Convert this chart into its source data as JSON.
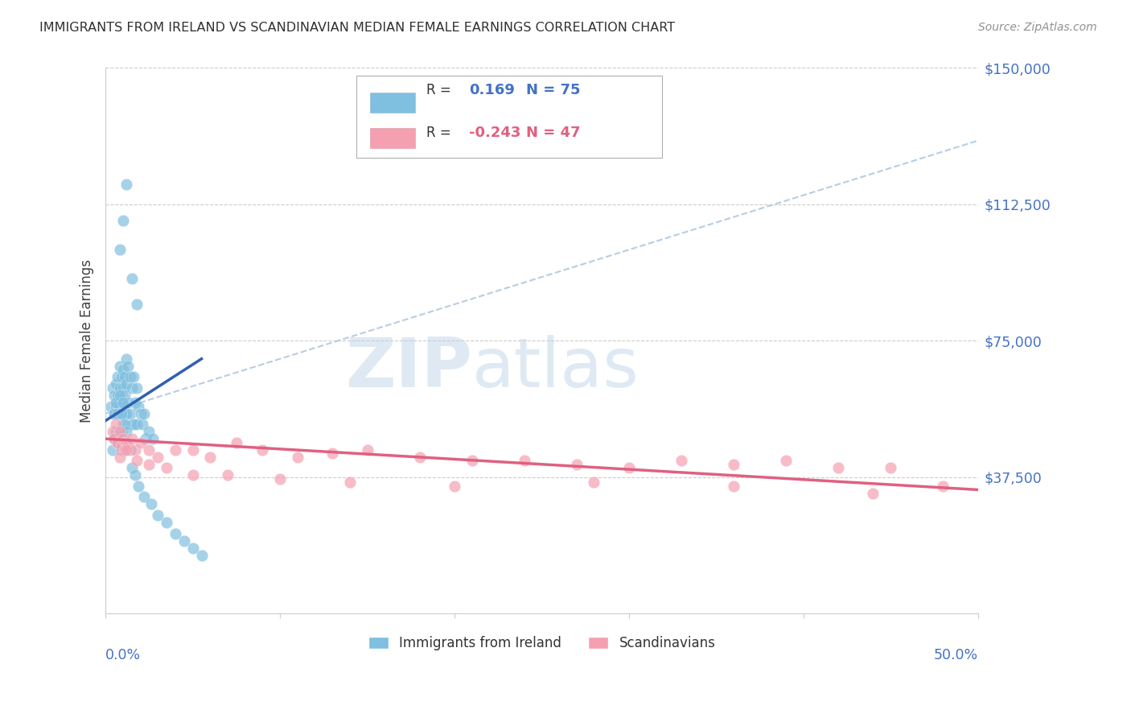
{
  "title": "IMMIGRANTS FROM IRELAND VS SCANDINAVIAN MEDIAN FEMALE EARNINGS CORRELATION CHART",
  "source": "Source: ZipAtlas.com",
  "ylabel": "Median Female Earnings",
  "xlim": [
    0.0,
    0.5
  ],
  "ylim": [
    0,
    150000
  ],
  "legend_ireland_R": "0.169",
  "legend_ireland_N": "75",
  "legend_scandinavian_R": "-0.243",
  "legend_scandinavian_N": "47",
  "legend_label_ireland": "Immigrants from Ireland",
  "legend_label_scandinavian": "Scandinavians",
  "color_ireland": "#7fbfdf",
  "color_scandinavian": "#f4a0b0",
  "color_ireland_line": "#3060b0",
  "color_scandinavian_line": "#e06080",
  "color_dashed_line": "#b0c8e0",
  "color_axis_labels": "#4472c4",
  "color_title": "#303030",
  "color_source": "#909090",
  "color_grid": "#cccccc",
  "watermark_zip": "ZIP",
  "watermark_atlas": "atlas",
  "ireland_x": [
    0.003,
    0.004,
    0.004,
    0.005,
    0.005,
    0.005,
    0.006,
    0.006,
    0.006,
    0.007,
    0.007,
    0.007,
    0.007,
    0.008,
    0.008,
    0.008,
    0.008,
    0.009,
    0.009,
    0.009,
    0.009,
    0.009,
    0.01,
    0.01,
    0.01,
    0.01,
    0.011,
    0.011,
    0.011,
    0.012,
    0.012,
    0.012,
    0.013,
    0.013,
    0.014,
    0.014,
    0.015,
    0.015,
    0.016,
    0.016,
    0.017,
    0.018,
    0.018,
    0.019,
    0.02,
    0.021,
    0.022,
    0.023,
    0.025,
    0.027,
    0.005,
    0.006,
    0.007,
    0.008,
    0.009,
    0.01,
    0.011,
    0.012,
    0.014,
    0.015,
    0.017,
    0.019,
    0.022,
    0.026,
    0.03,
    0.035,
    0.04,
    0.045,
    0.05,
    0.055,
    0.008,
    0.01,
    0.012,
    0.015,
    0.018
  ],
  "ireland_y": [
    57000,
    62000,
    45000,
    60000,
    55000,
    48000,
    63000,
    57000,
    50000,
    65000,
    60000,
    55000,
    47000,
    68000,
    62000,
    57000,
    50000,
    65000,
    60000,
    55000,
    50000,
    45000,
    67000,
    62000,
    57000,
    52000,
    65000,
    60000,
    55000,
    70000,
    63000,
    55000,
    68000,
    58000,
    65000,
    55000,
    62000,
    52000,
    65000,
    52000,
    58000,
    62000,
    52000,
    57000,
    55000,
    52000,
    55000,
    48000,
    50000,
    48000,
    55000,
    58000,
    55000,
    60000,
    55000,
    58000,
    52000,
    50000,
    45000,
    40000,
    38000,
    35000,
    32000,
    30000,
    27000,
    25000,
    22000,
    20000,
    18000,
    16000,
    100000,
    108000,
    118000,
    92000,
    85000
  ],
  "scandinavian_x": [
    0.004,
    0.005,
    0.006,
    0.007,
    0.008,
    0.009,
    0.01,
    0.011,
    0.012,
    0.013,
    0.015,
    0.017,
    0.02,
    0.025,
    0.03,
    0.04,
    0.05,
    0.06,
    0.075,
    0.09,
    0.11,
    0.13,
    0.15,
    0.18,
    0.21,
    0.24,
    0.27,
    0.3,
    0.33,
    0.36,
    0.39,
    0.42,
    0.45,
    0.48,
    0.008,
    0.012,
    0.018,
    0.025,
    0.035,
    0.05,
    0.07,
    0.1,
    0.14,
    0.2,
    0.28,
    0.36,
    0.44
  ],
  "scandinavian_y": [
    50000,
    48000,
    52000,
    47000,
    50000,
    46000,
    48000,
    45000,
    47000,
    46000,
    48000,
    45000,
    47000,
    45000,
    43000,
    45000,
    45000,
    43000,
    47000,
    45000,
    43000,
    44000,
    45000,
    43000,
    42000,
    42000,
    41000,
    40000,
    42000,
    41000,
    42000,
    40000,
    40000,
    35000,
    43000,
    45000,
    42000,
    41000,
    40000,
    38000,
    38000,
    37000,
    36000,
    35000,
    36000,
    35000,
    33000
  ],
  "ireland_line_x": [
    0.0,
    0.055
  ],
  "ireland_line_y": [
    53000,
    70000
  ],
  "scandinavian_line_x": [
    0.0,
    0.5
  ],
  "scandinavian_line_y": [
    48000,
    34000
  ],
  "dashed_line_x": [
    0.0,
    0.5
  ],
  "dashed_line_y": [
    55000,
    130000
  ]
}
